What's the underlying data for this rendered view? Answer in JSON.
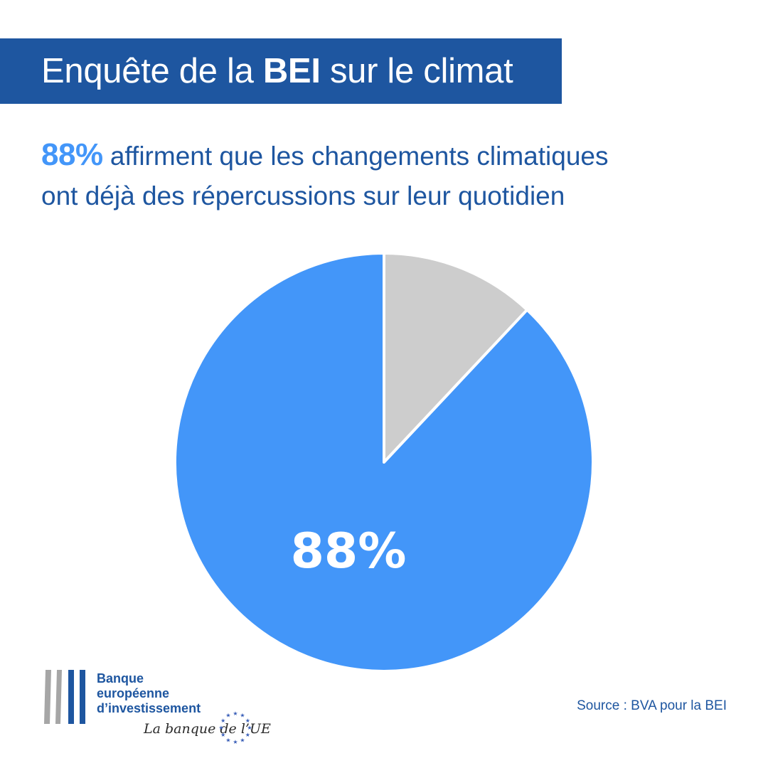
{
  "header": {
    "title_before": "Enquête de la ",
    "title_bold": "BEI",
    "title_after": " sur le climat"
  },
  "headline": {
    "highlight": "88%",
    "text_line1": " affirment que les changements climatiques",
    "text_line2": "ont déjà des répercussions sur leur quotidien"
  },
  "chart_data": {
    "type": "pie",
    "slices": [
      {
        "value": 88,
        "color": "#4396f9",
        "label": "88%"
      },
      {
        "value": 12,
        "color": "#cdcdcd",
        "label": ""
      }
    ],
    "start_angle_deg": 0,
    "direction": "clockwise-from-top, small slice first"
  },
  "logo": {
    "line1": "Banque",
    "line2": "européenne",
    "line3": "d’investissement",
    "tagline": "La banque de l’UE",
    "colors": {
      "grey": "#a6a6a6",
      "blue": "#1e56a0",
      "stars": "#3a5fb8"
    }
  },
  "footer": {
    "source": "Source : BVA pour la BEI"
  }
}
